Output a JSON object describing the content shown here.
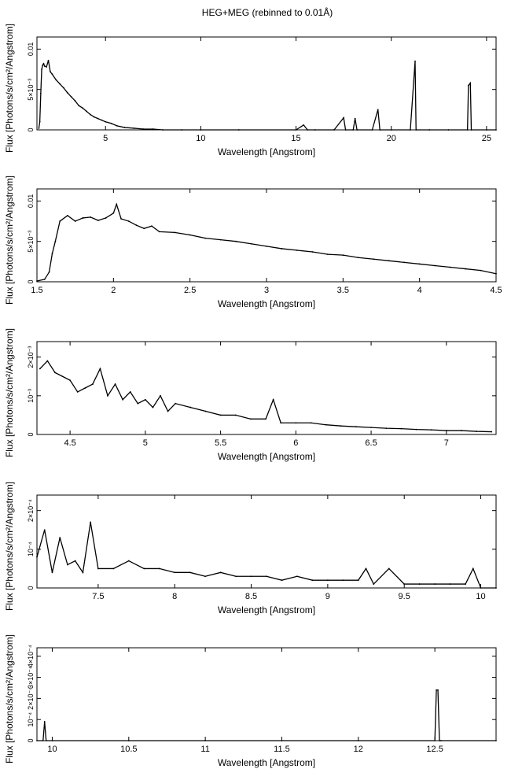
{
  "figure": {
    "title": "HEG+MEG (rebinned to 0.01Å)"
  },
  "chart_data": [
    {
      "type": "line",
      "title": "HEG+MEG (rebinned to 0.01Å)",
      "xlabel": "Wavelength [Angstrom]",
      "ylabel": "Flux [Photons/s/cm²/Angstrom]",
      "xlim": [
        1.4,
        25.5
      ],
      "ylim": [
        0,
        0.0115
      ],
      "xticks": [
        5,
        10,
        15,
        20,
        25
      ],
      "xtick_labels": [
        "5",
        "10",
        "15",
        "20",
        "25"
      ],
      "yticks": [
        0,
        0.005,
        0.01
      ],
      "ytick_labels": [
        "0",
        "5×10⁻³",
        "0.01"
      ],
      "series": [
        {
          "x": [
            1.5,
            1.55,
            1.6,
            1.65,
            1.7,
            1.75,
            1.8,
            1.9,
            2.0,
            2.1,
            2.2,
            2.4,
            2.6,
            2.8,
            3.0,
            3.2,
            3.4,
            3.6,
            3.8,
            4.0,
            4.2,
            4.4,
            4.6,
            4.8,
            5.0,
            5.3,
            5.6,
            6.0,
            6.5,
            7.0,
            7.5,
            8.0,
            9.0,
            10.0,
            12.0,
            15.0,
            15.4,
            15.6,
            16.0,
            17.0,
            17.5,
            17.6,
            18.0,
            18.1,
            18.2,
            19.0,
            19.3,
            19.4,
            20.0,
            21.0,
            21.25,
            21.3,
            22.0,
            23.0,
            24.0,
            24.05,
            24.15,
            24.2,
            25.0,
            25.5
          ],
          "y": [
            0.0002,
            0.001,
            0.0045,
            0.0075,
            0.008,
            0.0082,
            0.0079,
            0.0078,
            0.0086,
            0.0072,
            0.0069,
            0.0062,
            0.0057,
            0.0052,
            0.0046,
            0.0041,
            0.0036,
            0.003,
            0.0027,
            0.0023,
            0.0019,
            0.0016,
            0.0014,
            0.0012,
            0.001,
            0.0008,
            0.0005,
            0.0003,
            0.0002,
            0.0001,
            0.0001,
            0.0,
            0.0,
            0.0,
            0.0,
            0.0,
            0.0006,
            0.0,
            0.0,
            0.0,
            0.0015,
            0.0,
            0.0,
            0.0014,
            0.0,
            0.0,
            0.0025,
            0.0,
            0.0,
            0.0,
            0.0085,
            0.0,
            0.0,
            0.0,
            0.0,
            0.0055,
            0.0058,
            0.0,
            0.0,
            0.0
          ]
        }
      ]
    },
    {
      "type": "line",
      "xlabel": "Wavelength [Angstrom]",
      "ylabel": "Flux [Photons/s/cm²/Angstrom]",
      "xlim": [
        1.5,
        4.5
      ],
      "ylim": [
        0,
        0.0115
      ],
      "xticks": [
        1.5,
        2,
        2.5,
        3,
        3.5,
        4,
        4.5
      ],
      "xtick_labels": [
        "1.5",
        "2",
        "2.5",
        "3",
        "3.5",
        "4",
        "4.5"
      ],
      "yticks": [
        0,
        0.005,
        0.01
      ],
      "ytick_labels": [
        "0",
        "5×10⁻³",
        "0.01"
      ],
      "series": [
        {
          "x": [
            1.5,
            1.55,
            1.58,
            1.6,
            1.62,
            1.65,
            1.7,
            1.75,
            1.8,
            1.85,
            1.9,
            1.95,
            2.0,
            2.02,
            2.05,
            2.1,
            2.15,
            2.2,
            2.25,
            2.3,
            2.4,
            2.5,
            2.6,
            2.7,
            2.8,
            2.9,
            3.0,
            3.1,
            3.2,
            3.3,
            3.4,
            3.5,
            3.6,
            3.7,
            3.8,
            3.9,
            4.0,
            4.1,
            4.2,
            4.3,
            4.4,
            4.5
          ],
          "y": [
            0.0001,
            0.0003,
            0.0012,
            0.0035,
            0.005,
            0.0075,
            0.0082,
            0.0075,
            0.0079,
            0.008,
            0.0076,
            0.0079,
            0.0085,
            0.0096,
            0.0078,
            0.0075,
            0.007,
            0.0066,
            0.0069,
            0.0062,
            0.0061,
            0.0058,
            0.0054,
            0.0052,
            0.005,
            0.0047,
            0.0044,
            0.0041,
            0.0039,
            0.0037,
            0.0034,
            0.0033,
            0.003,
            0.0028,
            0.0026,
            0.0024,
            0.0022,
            0.002,
            0.0018,
            0.0016,
            0.0014,
            0.001
          ]
        }
      ]
    },
    {
      "type": "line",
      "xlabel": "Wavelength [Angstrom]",
      "ylabel": "Flux [Photons/s/cm²/Angstrom]",
      "xlim": [
        4.28,
        7.33
      ],
      "ylim": [
        0,
        0.0024
      ],
      "xticks": [
        4.5,
        5,
        5.5,
        6,
        6.5,
        7
      ],
      "xtick_labels": [
        "4.5",
        "5",
        "5.5",
        "6",
        "6.5",
        "7"
      ],
      "yticks": [
        0,
        0.001,
        0.002
      ],
      "ytick_labels": [
        "0",
        "10⁻³",
        "2×10⁻³"
      ],
      "series": [
        {
          "x": [
            4.3,
            4.35,
            4.4,
            4.45,
            4.5,
            4.55,
            4.6,
            4.65,
            4.7,
            4.75,
            4.8,
            4.85,
            4.9,
            4.95,
            5.0,
            5.05,
            5.1,
            5.15,
            5.2,
            5.3,
            5.4,
            5.5,
            5.6,
            5.7,
            5.8,
            5.85,
            5.9,
            6.0,
            6.1,
            6.2,
            6.3,
            6.4,
            6.5,
            6.6,
            6.7,
            6.8,
            6.9,
            7.0,
            7.1,
            7.2,
            7.3
          ],
          "y": [
            0.0017,
            0.0019,
            0.0016,
            0.0015,
            0.0014,
            0.0011,
            0.0012,
            0.0013,
            0.0017,
            0.001,
            0.0013,
            0.0009,
            0.0011,
            0.0008,
            0.0009,
            0.0007,
            0.001,
            0.0006,
            0.0008,
            0.0007,
            0.0006,
            0.0005,
            0.0005,
            0.0004,
            0.0004,
            0.0009,
            0.0003,
            0.0003,
            0.0003,
            0.00025,
            0.00022,
            0.0002,
            0.00018,
            0.00016,
            0.00015,
            0.00013,
            0.00012,
            0.0001,
            0.0001,
            8e-05,
            7e-05
          ]
        }
      ]
    },
    {
      "type": "line",
      "xlabel": "Wavelength [Angstrom]",
      "ylabel": "Flux [Photons/s/cm²/Angstrom]",
      "xlim": [
        7.1,
        10.1
      ],
      "ylim": [
        0,
        0.00024
      ],
      "xticks": [
        7.5,
        8,
        8.5,
        9,
        9.5,
        10
      ],
      "xtick_labels": [
        "7.5",
        "8",
        "8.5",
        "9",
        "9.5",
        "10"
      ],
      "yticks": [
        0,
        0.0001,
        0.0002
      ],
      "ytick_labels": [
        "0",
        "10⁻⁴",
        "2×10⁻⁴"
      ],
      "series": [
        {
          "x": [
            7.1,
            7.15,
            7.2,
            7.25,
            7.3,
            7.35,
            7.4,
            7.45,
            7.5,
            7.6,
            7.7,
            7.8,
            7.9,
            8.0,
            8.1,
            8.2,
            8.3,
            8.4,
            8.5,
            8.6,
            8.7,
            8.8,
            8.9,
            9.0,
            9.1,
            9.2,
            9.25,
            9.3,
            9.4,
            9.5,
            9.6,
            9.7,
            9.8,
            9.9,
            9.95,
            10.0,
            10.1
          ],
          "y": [
            8e-05,
            0.00015,
            4e-05,
            0.00013,
            6e-05,
            7e-05,
            4e-05,
            0.00017,
            5e-05,
            5e-05,
            7e-05,
            5e-05,
            5e-05,
            4e-05,
            4e-05,
            3e-05,
            4e-05,
            3e-05,
            3e-05,
            3e-05,
            2e-05,
            3e-05,
            2e-05,
            2e-05,
            2e-05,
            2e-05,
            5e-05,
            1e-05,
            5e-05,
            1e-05,
            1e-05,
            1e-05,
            1e-05,
            1e-05,
            5e-05,
            0.0,
            0.0
          ]
        }
      ]
    },
    {
      "type": "line",
      "xlabel": "Wavelength [Angstrom]",
      "ylabel": "Flux [Photons/s/cm²/Angstrom]",
      "xlim": [
        9.9,
        12.9
      ],
      "ylim": [
        0,
        0.00044
      ],
      "xticks": [
        10,
        10.5,
        11,
        11.5,
        12,
        12.5
      ],
      "xtick_labels": [
        "10",
        "10.5",
        "11",
        "11.5",
        "12",
        "12.5"
      ],
      "yticks": [
        0,
        0.0001,
        0.0002,
        0.0003,
        0.0004
      ],
      "ytick_labels": [
        "0",
        "10⁻⁴",
        "2×10⁻⁴",
        "3×10⁻⁴",
        "4×10⁻⁴"
      ],
      "series": [
        {
          "x": [
            9.9,
            9.94,
            9.95,
            9.96,
            10.0,
            10.5,
            11.0,
            11.5,
            12.0,
            12.5,
            12.51,
            12.52,
            12.53,
            12.54,
            12.9
          ],
          "y": [
            0.0,
            0.0,
            9e-05,
            0.0,
            0.0,
            0.0,
            0.0,
            0.0,
            0.0,
            0.0,
            0.00024,
            0.00024,
            0.0,
            0.0,
            0.0
          ]
        }
      ]
    }
  ]
}
